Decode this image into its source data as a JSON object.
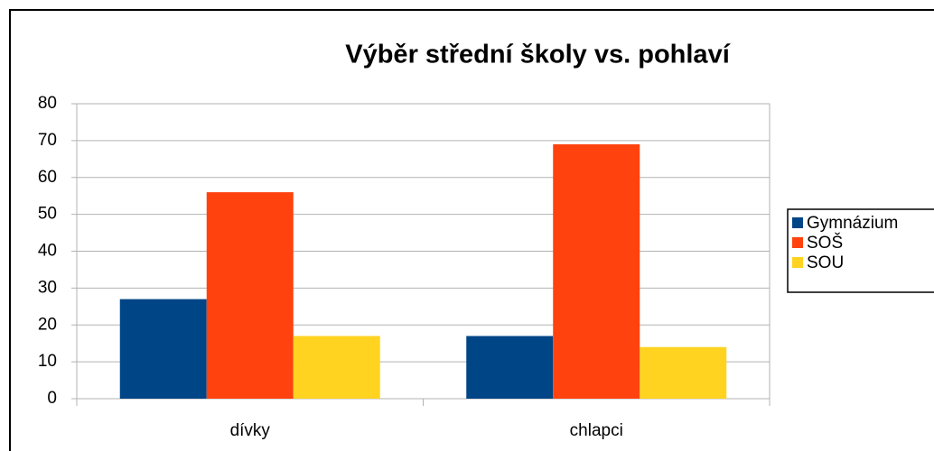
{
  "chart_data": {
    "type": "bar",
    "title": "Výběr střední školy vs. pohlaví",
    "categories": [
      "dívky",
      "chlapci"
    ],
    "series": [
      {
        "name": "Gymnázium",
        "color": "#004586",
        "values": [
          27,
          17
        ]
      },
      {
        "name": "SOŠ",
        "color": "#ff420e",
        "values": [
          56,
          69
        ]
      },
      {
        "name": "SOU",
        "color": "#ffd320",
        "values": [
          17,
          14
        ]
      }
    ],
    "ylim": [
      0,
      80
    ],
    "yticks": [
      0,
      10,
      20,
      30,
      40,
      50,
      60,
      70,
      80
    ],
    "grid": true,
    "legend": "right"
  }
}
